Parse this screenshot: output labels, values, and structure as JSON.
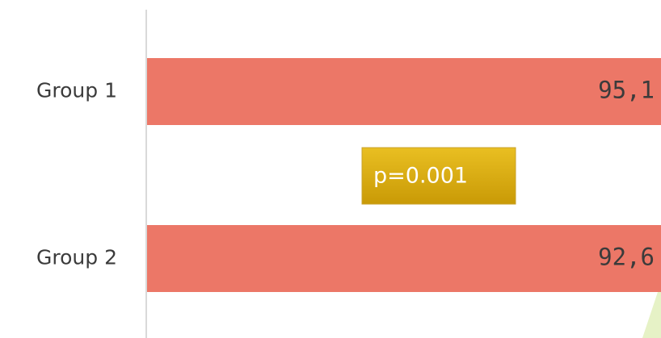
{
  "chart_data": {
    "type": "bar",
    "orientation": "horizontal",
    "categories": [
      "Group 1",
      "Group 2"
    ],
    "values": [
      95.1,
      92.6
    ],
    "value_labels": [
      "95,1",
      "92,6"
    ],
    "color": "#ec7767",
    "annotation": "p=0.001"
  }
}
